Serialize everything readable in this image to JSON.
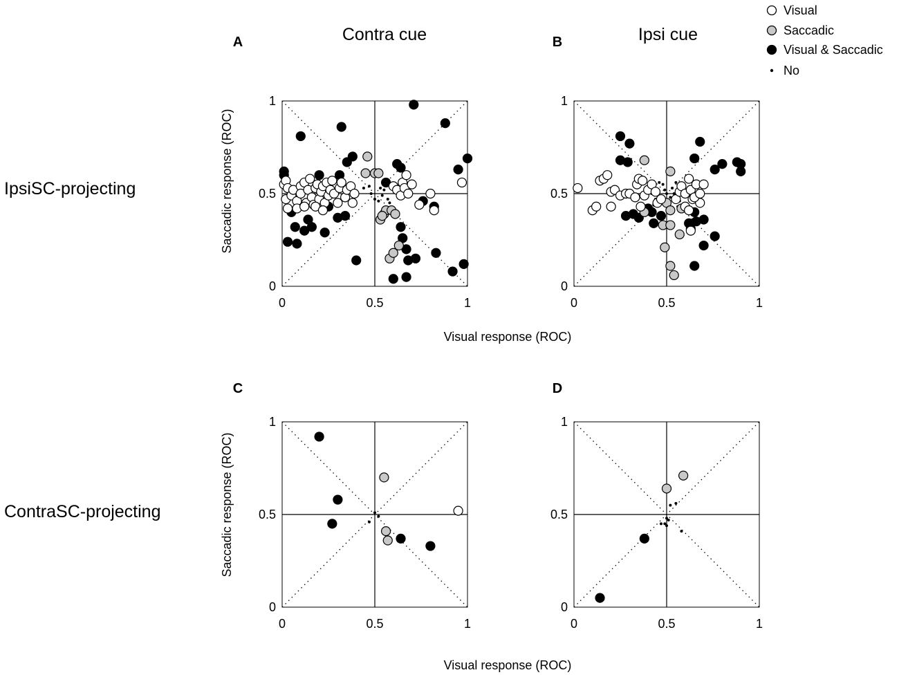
{
  "figure": {
    "col_titles": [
      "Contra cue",
      "Ipsi cue"
    ],
    "row_labels": [
      "IpsiSC-projecting",
      "ContraSC-projecting"
    ],
    "panel_letters": [
      "A",
      "B",
      "C",
      "D"
    ],
    "xlabel": "Visual response (ROC)",
    "ylabel": "Saccadic response (ROC)",
    "x_ticks": [
      "0",
      "0.5",
      "1"
    ],
    "y_ticks": [
      "0",
      "0.5",
      "1"
    ]
  },
  "legend": [
    {
      "label": "Visual",
      "key": "v"
    },
    {
      "label": "Saccadic",
      "key": "s"
    },
    {
      "label": "Visual & Saccadic",
      "key": "b"
    },
    {
      "label": "No",
      "key": "n"
    }
  ],
  "colors": {
    "visual_fill": "#ffffff",
    "saccadic_fill": "#c8c8c8",
    "both_fill": "#000000",
    "no_fill": "#000000",
    "stroke": "#000000"
  },
  "chart_data": [
    {
      "type": "scatter",
      "panel": "A",
      "title": "Contra cue",
      "row": "IpsiSC-projecting",
      "xlabel": "Visual response (ROC)",
      "ylabel": "Saccadic response (ROC)",
      "xlim": [
        0,
        1
      ],
      "ylim": [
        0,
        1
      ],
      "series": [
        {
          "name": "Visual",
          "key": "v",
          "points": [
            [
              0.01,
              0.55
            ],
            [
              0.02,
              0.57
            ],
            [
              0.03,
              0.53
            ],
            [
              0.02,
              0.47
            ],
            [
              0.03,
              0.42
            ],
            [
              0.05,
              0.49
            ],
            [
              0.06,
              0.52
            ],
            [
              0.08,
              0.46
            ],
            [
              0.1,
              0.54
            ],
            [
              0.1,
              0.5
            ],
            [
              0.12,
              0.56
            ],
            [
              0.13,
              0.45
            ],
            [
              0.14,
              0.52
            ],
            [
              0.15,
              0.58
            ],
            [
              0.16,
              0.48
            ],
            [
              0.17,
              0.44
            ],
            [
              0.18,
              0.53
            ],
            [
              0.19,
              0.55
            ],
            [
              0.2,
              0.47
            ],
            [
              0.21,
              0.51
            ],
            [
              0.22,
              0.54
            ],
            [
              0.23,
              0.45
            ],
            [
              0.24,
              0.56
            ],
            [
              0.25,
              0.49
            ],
            [
              0.26,
              0.52
            ],
            [
              0.27,
              0.57
            ],
            [
              0.28,
              0.5
            ],
            [
              0.3,
              0.45
            ],
            [
              0.31,
              0.53
            ],
            [
              0.32,
              0.56
            ],
            [
              0.34,
              0.48
            ],
            [
              0.35,
              0.52
            ],
            [
              0.37,
              0.54
            ],
            [
              0.39,
              0.5
            ],
            [
              0.08,
              0.42
            ],
            [
              0.12,
              0.43
            ],
            [
              0.18,
              0.43
            ],
            [
              0.22,
              0.41
            ],
            [
              0.38,
              0.45
            ],
            [
              0.6,
              0.54
            ],
            [
              0.62,
              0.52
            ],
            [
              0.64,
              0.49
            ],
            [
              0.65,
              0.56
            ],
            [
              0.66,
              0.53
            ],
            [
              0.67,
              0.6
            ],
            [
              0.68,
              0.5
            ],
            [
              0.7,
              0.55
            ],
            [
              0.74,
              0.44
            ],
            [
              0.8,
              0.5
            ],
            [
              0.82,
              0.41
            ],
            [
              0.97,
              0.56
            ]
          ]
        },
        {
          "name": "Saccadic",
          "key": "s",
          "points": [
            [
              0.46,
              0.7
            ],
            [
              0.45,
              0.61
            ],
            [
              0.5,
              0.61
            ],
            [
              0.52,
              0.61
            ],
            [
              0.53,
              0.36
            ],
            [
              0.55,
              0.39
            ],
            [
              0.56,
              0.41
            ],
            [
              0.59,
              0.41
            ],
            [
              0.61,
              0.39
            ],
            [
              0.58,
              0.15
            ],
            [
              0.6,
              0.18
            ],
            [
              0.63,
              0.22
            ],
            [
              0.54,
              0.38
            ]
          ]
        },
        {
          "name": "Visual & Saccadic",
          "key": "b",
          "points": [
            [
              0.01,
              0.62
            ],
            [
              0.01,
              0.6
            ],
            [
              0.03,
              0.24
            ],
            [
              0.05,
              0.4
            ],
            [
              0.07,
              0.32
            ],
            [
              0.08,
              0.23
            ],
            [
              0.1,
              0.81
            ],
            [
              0.12,
              0.3
            ],
            [
              0.14,
              0.36
            ],
            [
              0.16,
              0.32
            ],
            [
              0.2,
              0.6
            ],
            [
              0.23,
              0.29
            ],
            [
              0.25,
              0.43
            ],
            [
              0.3,
              0.37
            ],
            [
              0.31,
              0.6
            ],
            [
              0.32,
              0.86
            ],
            [
              0.34,
              0.38
            ],
            [
              0.35,
              0.67
            ],
            [
              0.38,
              0.7
            ],
            [
              0.4,
              0.14
            ],
            [
              0.56,
              0.56
            ],
            [
              0.62,
              0.66
            ],
            [
              0.64,
              0.64
            ],
            [
              0.64,
              0.32
            ],
            [
              0.65,
              0.26
            ],
            [
              0.67,
              0.2
            ],
            [
              0.68,
              0.14
            ],
            [
              0.6,
              0.04
            ],
            [
              0.67,
              0.05
            ],
            [
              0.71,
              0.98
            ],
            [
              0.72,
              0.15
            ],
            [
              0.76,
              0.46
            ],
            [
              0.82,
              0.43
            ],
            [
              0.83,
              0.18
            ],
            [
              0.88,
              0.88
            ],
            [
              0.92,
              0.08
            ],
            [
              0.95,
              0.63
            ],
            [
              0.98,
              0.12
            ],
            [
              1.0,
              0.69
            ]
          ]
        },
        {
          "name": "No",
          "key": "n",
          "points": [
            [
              0.48,
              0.5
            ],
            [
              0.5,
              0.47
            ],
            [
              0.52,
              0.46
            ],
            [
              0.54,
              0.49
            ],
            [
              0.55,
              0.52
            ],
            [
              0.57,
              0.47
            ],
            [
              0.44,
              0.53
            ],
            [
              0.47,
              0.54
            ],
            [
              0.53,
              0.53
            ],
            [
              0.58,
              0.45
            ]
          ]
        }
      ]
    },
    {
      "type": "scatter",
      "panel": "B",
      "title": "Ipsi cue",
      "row": "IpsiSC-projecting",
      "xlabel": "Visual response (ROC)",
      "ylabel": "Saccadic response (ROC)",
      "xlim": [
        0,
        1
      ],
      "ylim": [
        0,
        1
      ],
      "series": [
        {
          "name": "Visual",
          "key": "v",
          "points": [
            [
              0.02,
              0.53
            ],
            [
              0.1,
              0.41
            ],
            [
              0.12,
              0.43
            ],
            [
              0.14,
              0.57
            ],
            [
              0.16,
              0.58
            ],
            [
              0.18,
              0.6
            ],
            [
              0.2,
              0.43
            ],
            [
              0.2,
              0.51
            ],
            [
              0.22,
              0.52
            ],
            [
              0.25,
              0.49
            ],
            [
              0.28,
              0.5
            ],
            [
              0.3,
              0.5
            ],
            [
              0.33,
              0.48
            ],
            [
              0.34,
              0.55
            ],
            [
              0.35,
              0.58
            ],
            [
              0.37,
              0.57
            ],
            [
              0.38,
              0.49
            ],
            [
              0.4,
              0.52
            ],
            [
              0.42,
              0.55
            ],
            [
              0.44,
              0.51
            ],
            [
              0.45,
              0.45
            ],
            [
              0.47,
              0.47
            ],
            [
              0.55,
              0.47
            ],
            [
              0.57,
              0.51
            ],
            [
              0.58,
              0.54
            ],
            [
              0.6,
              0.5
            ],
            [
              0.62,
              0.58
            ],
            [
              0.63,
              0.52
            ],
            [
              0.64,
              0.47
            ],
            [
              0.66,
              0.55
            ],
            [
              0.68,
              0.45
            ],
            [
              0.7,
              0.55
            ],
            [
              0.6,
              0.43
            ],
            [
              0.62,
              0.41
            ],
            [
              0.63,
              0.3
            ],
            [
              0.65,
              0.48
            ],
            [
              0.68,
              0.5
            ],
            [
              0.36,
              0.43
            ]
          ]
        },
        {
          "name": "Saccadic",
          "key": "s",
          "points": [
            [
              0.38,
              0.68
            ],
            [
              0.52,
              0.62
            ],
            [
              0.5,
              0.45
            ],
            [
              0.52,
              0.41
            ],
            [
              0.48,
              0.33
            ],
            [
              0.52,
              0.33
            ],
            [
              0.58,
              0.42
            ],
            [
              0.57,
              0.28
            ],
            [
              0.49,
              0.21
            ],
            [
              0.52,
              0.11
            ],
            [
              0.54,
              0.06
            ],
            [
              0.38,
              0.4
            ]
          ]
        },
        {
          "name": "Visual & Saccadic",
          "key": "b",
          "points": [
            [
              0.25,
              0.81
            ],
            [
              0.3,
              0.77
            ],
            [
              0.25,
              0.68
            ],
            [
              0.29,
              0.67
            ],
            [
              0.28,
              0.38
            ],
            [
              0.32,
              0.39
            ],
            [
              0.35,
              0.37
            ],
            [
              0.4,
              0.42
            ],
            [
              0.42,
              0.4
            ],
            [
              0.43,
              0.34
            ],
            [
              0.47,
              0.38
            ],
            [
              0.62,
              0.34
            ],
            [
              0.63,
              0.31
            ],
            [
              0.65,
              0.4
            ],
            [
              0.66,
              0.35
            ],
            [
              0.7,
              0.36
            ],
            [
              0.65,
              0.69
            ],
            [
              0.68,
              0.78
            ],
            [
              0.7,
              0.22
            ],
            [
              0.65,
              0.11
            ],
            [
              0.76,
              0.27
            ],
            [
              0.76,
              0.63
            ],
            [
              0.8,
              0.66
            ],
            [
              0.88,
              0.67
            ],
            [
              0.9,
              0.62
            ],
            [
              0.9,
              0.66
            ]
          ]
        },
        {
          "name": "No",
          "key": "n",
          "points": [
            [
              0.42,
              0.5
            ],
            [
              0.45,
              0.52
            ],
            [
              0.48,
              0.55
            ],
            [
              0.5,
              0.5
            ],
            [
              0.52,
              0.48
            ],
            [
              0.53,
              0.53
            ],
            [
              0.55,
              0.56
            ],
            [
              0.47,
              0.47
            ],
            [
              0.44,
              0.47
            ],
            [
              0.46,
              0.56
            ],
            [
              0.51,
              0.44
            ],
            [
              0.57,
              0.46
            ],
            [
              0.54,
              0.5
            ],
            [
              0.49,
              0.52
            ],
            [
              0.41,
              0.54
            ],
            [
              0.43,
              0.44
            ],
            [
              0.58,
              0.52
            ],
            [
              0.6,
              0.5
            ],
            [
              0.39,
              0.48
            ],
            [
              0.56,
              0.43
            ]
          ]
        }
      ]
    },
    {
      "type": "scatter",
      "panel": "C",
      "title": "Contra cue",
      "row": "ContraSC-projecting",
      "xlabel": "Visual response (ROC)",
      "ylabel": "Saccadic response (ROC)",
      "xlim": [
        0,
        1
      ],
      "ylim": [
        0,
        1
      ],
      "series": [
        {
          "name": "Visual",
          "key": "v",
          "points": [
            [
              0.95,
              0.52
            ]
          ]
        },
        {
          "name": "Saccadic",
          "key": "s",
          "points": [
            [
              0.55,
              0.7
            ],
            [
              0.56,
              0.41
            ],
            [
              0.57,
              0.36
            ]
          ]
        },
        {
          "name": "Visual & Saccadic",
          "key": "b",
          "points": [
            [
              0.2,
              0.92
            ],
            [
              0.3,
              0.58
            ],
            [
              0.27,
              0.45
            ],
            [
              0.64,
              0.37
            ],
            [
              0.8,
              0.33
            ]
          ]
        },
        {
          "name": "No",
          "key": "n",
          "points": [
            [
              0.47,
              0.46
            ],
            [
              0.5,
              0.51
            ],
            [
              0.52,
              0.49
            ]
          ]
        }
      ]
    },
    {
      "type": "scatter",
      "panel": "D",
      "title": "Ipsi cue",
      "row": "ContraSC-projecting",
      "xlabel": "Visual response (ROC)",
      "ylabel": "Saccadic response (ROC)",
      "xlim": [
        0,
        1
      ],
      "ylim": [
        0,
        1
      ],
      "series": [
        {
          "name": "Visual",
          "key": "v",
          "points": []
        },
        {
          "name": "Saccadic",
          "key": "s",
          "points": [
            [
              0.5,
              0.64
            ],
            [
              0.59,
              0.71
            ]
          ]
        },
        {
          "name": "Visual & Saccadic",
          "key": "b",
          "points": [
            [
              0.38,
              0.37
            ],
            [
              0.14,
              0.05
            ]
          ]
        },
        {
          "name": "No",
          "key": "n",
          "points": [
            [
              0.49,
              0.45
            ],
            [
              0.5,
              0.48
            ],
            [
              0.51,
              0.47
            ],
            [
              0.47,
              0.45
            ],
            [
              0.52,
              0.55
            ],
            [
              0.55,
              0.56
            ],
            [
              0.58,
              0.41
            ],
            [
              0.5,
              0.44
            ]
          ]
        }
      ]
    }
  ]
}
